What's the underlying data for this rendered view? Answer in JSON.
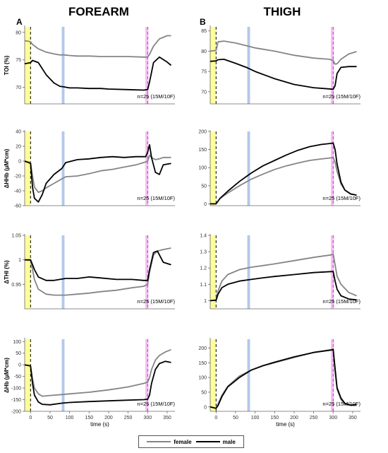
{
  "figure": {
    "col_titles": {
      "left": "FOREARM",
      "right": "THIGH"
    },
    "panel_letters": {
      "left": "A",
      "right": "B"
    },
    "annotation": "n=25 (15M/10F)",
    "xlabel": "time (s)",
    "legend": {
      "female": "female",
      "male": "male"
    },
    "colors": {
      "female": "#858585",
      "male": "#000000",
      "baseline": "#ffff99",
      "mid": "#b4c8ea",
      "end": "#f4c2f2",
      "dash_black": "#000000",
      "dash_pink": "#cc33cc"
    }
  },
  "chart_data": [
    {
      "id": "forearm-toi",
      "type": "line",
      "xlabel": "time (s)",
      "ylabel": "TOI (%)",
      "xlim": [
        -15,
        370
      ],
      "ylim": [
        67,
        81
      ],
      "yticks": [
        70,
        75,
        80
      ],
      "xticks": [],
      "x": [
        -15,
        0,
        5,
        20,
        40,
        60,
        75,
        85,
        100,
        120,
        150,
        180,
        200,
        250,
        290,
        300,
        305,
        315,
        330,
        350,
        360
      ],
      "series": [
        {
          "name": "female",
          "values": [
            78.5,
            78.3,
            77.8,
            77.0,
            76.4,
            76.1,
            75.9,
            75.9,
            75.8,
            75.7,
            75.7,
            75.6,
            75.6,
            75.6,
            75.5,
            75.5,
            76.0,
            77.5,
            78.8,
            79.4,
            79.4
          ]
        },
        {
          "name": "male",
          "values": [
            74.3,
            74.5,
            74.9,
            74.5,
            72.3,
            70.8,
            70.2,
            70.1,
            69.9,
            69.9,
            69.8,
            69.8,
            69.7,
            69.6,
            69.5,
            69.6,
            71.0,
            74.5,
            75.5,
            74.6,
            74.0
          ]
        }
      ]
    },
    {
      "id": "forearm-hhb",
      "type": "line",
      "xlabel": "time (s)",
      "ylabel": "ΔHHb (µM*cm)",
      "xlim": [
        -15,
        370
      ],
      "ylim": [
        -60,
        40
      ],
      "yticks": [
        -60,
        -40,
        -20,
        0,
        20,
        40
      ],
      "xticks": [],
      "x": [
        -15,
        0,
        5,
        10,
        20,
        30,
        40,
        60,
        80,
        90,
        120,
        150,
        180,
        210,
        240,
        270,
        295,
        300,
        305,
        310,
        320,
        330,
        340,
        360
      ],
      "series": [
        {
          "name": "female",
          "values": [
            0,
            -2,
            -20,
            -35,
            -42,
            -40,
            -36,
            -30,
            -24,
            -21,
            -20,
            -17,
            -13,
            -11,
            -8,
            -5,
            -1,
            0,
            8,
            5,
            2,
            3,
            5,
            5
          ]
        },
        {
          "name": "male",
          "values": [
            0,
            -3,
            -35,
            -50,
            -55,
            -45,
            -30,
            -18,
            -10,
            -2,
            2,
            3,
            5,
            6,
            5,
            6,
            6,
            12,
            22,
            5,
            -15,
            -18,
            -5,
            -3
          ]
        }
      ]
    },
    {
      "id": "forearm-thi",
      "type": "line",
      "xlabel": "time (s)",
      "ylabel": "ΔTHI (%)",
      "xlim": [
        -15,
        370
      ],
      "ylim": [
        0.9,
        1.05
      ],
      "yticks": [
        0.95,
        1,
        1.05
      ],
      "xticks": [],
      "x": [
        -15,
        0,
        5,
        10,
        20,
        40,
        60,
        90,
        120,
        150,
        180,
        220,
        260,
        290,
        300,
        305,
        315,
        325,
        340,
        360
      ],
      "series": [
        {
          "name": "female",
          "values": [
            1.0,
            0.999,
            0.98,
            0.96,
            0.94,
            0.93,
            0.928,
            0.928,
            0.93,
            0.932,
            0.935,
            0.938,
            0.943,
            0.946,
            0.95,
            0.975,
            1.01,
            1.018,
            1.021,
            1.024
          ]
        },
        {
          "name": "male",
          "values": [
            1.0,
            1.0,
            0.99,
            0.98,
            0.965,
            0.958,
            0.958,
            0.962,
            0.962,
            0.965,
            0.963,
            0.96,
            0.96,
            0.958,
            0.958,
            0.98,
            1.015,
            1.018,
            0.995,
            0.99
          ]
        }
      ]
    },
    {
      "id": "forearm-hb",
      "type": "line",
      "xlabel": "time (s)",
      "ylabel": "ΔHb (µM*cm)",
      "xlim": [
        -15,
        370
      ],
      "ylim": [
        -200,
        110
      ],
      "yticks": [
        -200,
        -150,
        -100,
        -50,
        0,
        50,
        100
      ],
      "xticks": [
        0,
        50,
        100,
        150,
        200,
        250,
        300,
        350
      ],
      "x": [
        -15,
        0,
        5,
        10,
        20,
        30,
        50,
        80,
        100,
        150,
        200,
        250,
        290,
        300,
        305,
        310,
        320,
        330,
        345,
        360
      ],
      "series": [
        {
          "name": "female",
          "values": [
            0,
            -5,
            -60,
            -100,
            -125,
            -135,
            -132,
            -128,
            -125,
            -118,
            -108,
            -95,
            -80,
            -75,
            -55,
            -20,
            20,
            40,
            55,
            65
          ]
        },
        {
          "name": "male",
          "values": [
            0,
            -5,
            -80,
            -130,
            -160,
            -170,
            -172,
            -165,
            -162,
            -158,
            -155,
            -152,
            -150,
            -148,
            -130,
            -80,
            -20,
            5,
            15,
            10
          ]
        }
      ]
    },
    {
      "id": "thigh-toi",
      "type": "line",
      "xlabel": "time (s)",
      "ylabel": "",
      "xlim": [
        -15,
        370
      ],
      "ylim": [
        67,
        86
      ],
      "yticks": [
        70,
        75,
        80,
        85
      ],
      "xticks": [],
      "x": [
        -15,
        0,
        5,
        20,
        50,
        80,
        100,
        150,
        200,
        250,
        290,
        300,
        305,
        310,
        320,
        340,
        360
      ],
      "series": [
        {
          "name": "female",
          "values": [
            80.0,
            80.2,
            82.3,
            82.5,
            82.0,
            81.3,
            80.8,
            80.0,
            79.0,
            78.3,
            78.0,
            77.7,
            76.8,
            76.9,
            78.0,
            79.3,
            79.9
          ]
        },
        {
          "name": "male",
          "values": [
            77.5,
            77.6,
            77.9,
            78.0,
            77.0,
            75.9,
            75.0,
            73.2,
            71.8,
            71.0,
            70.7,
            70.6,
            71.5,
            74.5,
            76.0,
            76.2,
            76.2
          ]
        }
      ]
    },
    {
      "id": "thigh-hhb",
      "type": "line",
      "xlabel": "time (s)",
      "ylabel": "",
      "xlim": [
        -15,
        370
      ],
      "ylim": [
        -5,
        200
      ],
      "yticks": [
        0,
        50,
        100,
        150,
        200
      ],
      "xticks": [],
      "x": [
        -15,
        0,
        10,
        30,
        60,
        90,
        120,
        150,
        180,
        210,
        240,
        270,
        295,
        300,
        305,
        310,
        320,
        330,
        345,
        360
      ],
      "series": [
        {
          "name": "female",
          "values": [
            0,
            0,
            15,
            30,
            50,
            68,
            82,
            95,
            105,
            113,
            120,
            124,
            127,
            128,
            115,
            90,
            55,
            38,
            28,
            24
          ]
        },
        {
          "name": "male",
          "values": [
            0,
            0,
            15,
            35,
            62,
            85,
            105,
            120,
            135,
            148,
            158,
            164,
            167,
            168,
            150,
            110,
            60,
            38,
            27,
            24
          ]
        }
      ]
    },
    {
      "id": "thigh-thi",
      "type": "line",
      "xlabel": "time (s)",
      "ylabel": "",
      "xlim": [
        -15,
        370
      ],
      "ylim": [
        0.95,
        1.4
      ],
      "yticks": [
        1,
        1.1,
        1.2,
        1.3,
        1.4
      ],
      "xticks": [],
      "x": [
        -15,
        0,
        5,
        15,
        30,
        60,
        90,
        120,
        150,
        200,
        250,
        295,
        300,
        305,
        310,
        320,
        340,
        360
      ],
      "series": [
        {
          "name": "female",
          "values": [
            1.0,
            1.005,
            1.06,
            1.12,
            1.16,
            1.19,
            1.205,
            1.215,
            1.225,
            1.245,
            1.265,
            1.28,
            1.285,
            1.22,
            1.15,
            1.1,
            1.05,
            1.03
          ]
        },
        {
          "name": "male",
          "values": [
            1.0,
            1.002,
            1.04,
            1.08,
            1.1,
            1.12,
            1.13,
            1.14,
            1.148,
            1.16,
            1.172,
            1.178,
            1.178,
            1.12,
            1.07,
            1.03,
            1.01,
            1.005
          ]
        }
      ]
    },
    {
      "id": "thigh-hb",
      "type": "line",
      "xlabel": "time (s)",
      "ylabel": "",
      "xlim": [
        -15,
        370
      ],
      "ylim": [
        -15,
        230
      ],
      "yticks": [
        0,
        50,
        100,
        150,
        200
      ],
      "xticks": [
        0,
        50,
        100,
        150,
        200,
        250,
        300,
        350
      ],
      "x": [
        -15,
        0,
        5,
        15,
        30,
        60,
        90,
        120,
        150,
        200,
        250,
        295,
        300,
        305,
        310,
        320,
        330,
        345,
        360
      ],
      "series": [
        {
          "name": "female",
          "values": [
            0,
            -5,
            10,
            40,
            70,
            105,
            125,
            140,
            150,
            168,
            185,
            195,
            197,
            120,
            60,
            25,
            10,
            5,
            5
          ]
        },
        {
          "name": "male",
          "values": [
            0,
            -5,
            5,
            35,
            68,
            100,
            125,
            140,
            152,
            170,
            185,
            193,
            195,
            130,
            65,
            30,
            12,
            6,
            8
          ]
        }
      ]
    }
  ]
}
